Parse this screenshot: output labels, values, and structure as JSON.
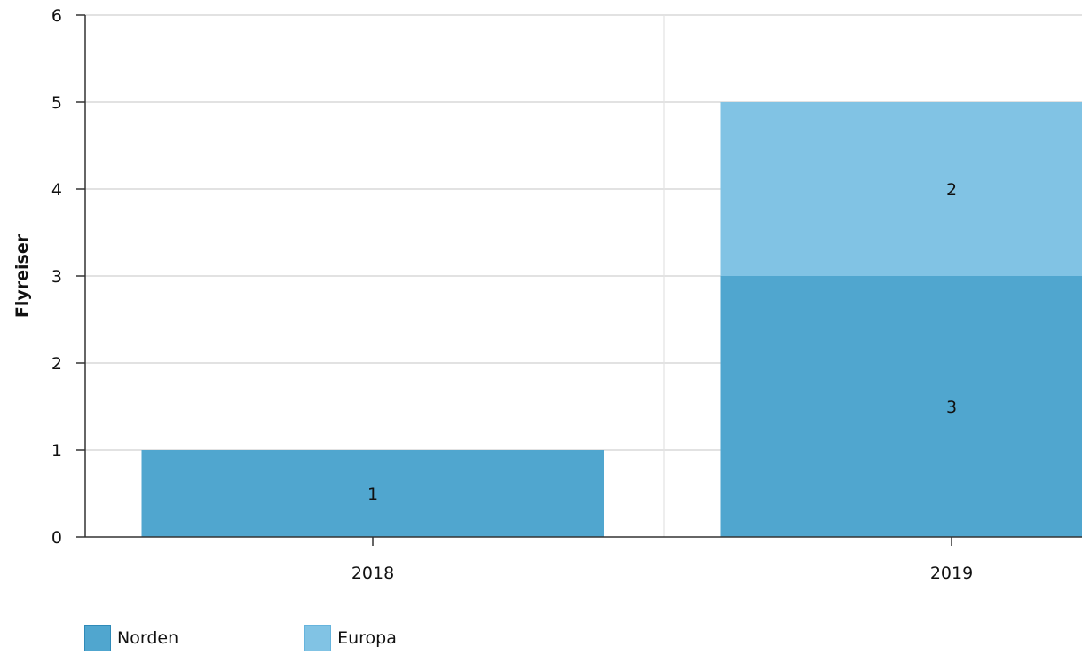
{
  "chart_data": {
    "type": "bar",
    "stacked": true,
    "categories": [
      "2018",
      "2019"
    ],
    "series": [
      {
        "name": "Norden",
        "values": [
          1,
          3
        ],
        "color": "#50a6cf",
        "border": "#2f8ab8"
      },
      {
        "name": "Europa",
        "values": [
          0,
          2
        ],
        "color": "#81c3e4",
        "border": "#66b4dd"
      }
    ],
    "title": "",
    "xlabel": "",
    "ylabel": "Flyreiser",
    "ylim": [
      0,
      6
    ],
    "yticks": [
      "0",
      "1",
      "2",
      "3",
      "4",
      "5",
      "6"
    ],
    "data_labels": true,
    "grid": true,
    "legend_position": "bottom-left"
  }
}
